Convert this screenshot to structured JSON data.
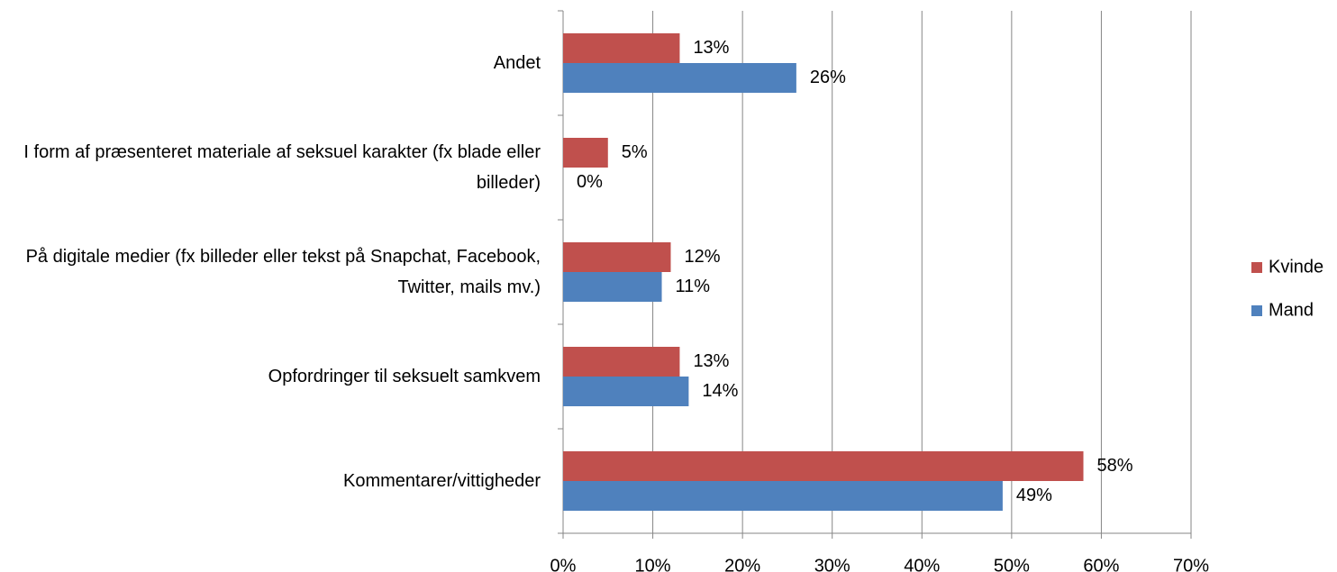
{
  "chart_data": {
    "type": "barh",
    "categories": [
      "Andet",
      "I form af præsenteret materiale af seksuel karakter (fx blade eller billeder)",
      "På digitale medier (fx billeder eller tekst på Snapchat, Facebook, Twitter, mails mv.)",
      "Opfordringer til seksuelt samkvem",
      "Kommentarer/vittigheder"
    ],
    "series": [
      {
        "name": "Kvinde",
        "color": "#c0504d",
        "values": [
          13,
          5,
          12,
          13,
          58
        ],
        "value_labels": [
          "13%",
          "5%",
          "12%",
          "13%",
          "58%"
        ]
      },
      {
        "name": "Mand",
        "color": "#4f81bd",
        "values": [
          26,
          0,
          11,
          14,
          49
        ],
        "value_labels": [
          "26%",
          "0%",
          "11%",
          "14%",
          "49%"
        ]
      }
    ],
    "xlim": [
      0,
      70
    ],
    "xticks": [
      {
        "value": 0,
        "label": "0%"
      },
      {
        "value": 10,
        "label": "10%"
      },
      {
        "value": 20,
        "label": "20%"
      },
      {
        "value": 30,
        "label": "30%"
      },
      {
        "value": 40,
        "label": "40%"
      },
      {
        "value": 50,
        "label": "50%"
      },
      {
        "value": 60,
        "label": "60%"
      },
      {
        "value": 70,
        "label": "70%"
      }
    ],
    "grid": true,
    "legend": "right"
  }
}
